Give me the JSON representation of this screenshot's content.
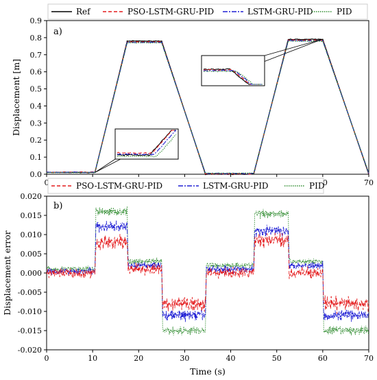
{
  "chart_data": [
    {
      "type": "line",
      "panel_tag": "a)",
      "xlabel": "",
      "ylabel": "Displacement [m]",
      "xlim": [
        0,
        70
      ],
      "ylim": [
        0,
        0.9
      ],
      "xticks": [
        0,
        10,
        20,
        30,
        40,
        50,
        60,
        70
      ],
      "yticks": [
        "0.0",
        "0.1",
        "0.2",
        "0.3",
        "0.4",
        "0.5",
        "0.6",
        "0.7",
        "0.8",
        "0.9"
      ],
      "legend_placement": "top (outside plot)",
      "grid": false,
      "x": [
        0,
        10.5,
        17.5,
        25,
        34.5,
        45,
        52.5,
        60,
        70
      ],
      "series": [
        {
          "name": "Ref",
          "color": "#000000",
          "style": "solid",
          "values": [
            0.01,
            0.01,
            0.78,
            0.78,
            0.0,
            0.0,
            0.79,
            0.79,
            0.0
          ]
        },
        {
          "name": "PSO-LSTM-GRU-PID",
          "color": "#e41a1c",
          "style": "dashed",
          "values": [
            0.012,
            0.012,
            0.775,
            0.775,
            0.003,
            0.003,
            0.785,
            0.785,
            0.003
          ]
        },
        {
          "name": "LSTM-GRU-PID",
          "color": "#1f1fd4",
          "style": "dashdot",
          "values": [
            0.011,
            0.011,
            0.772,
            0.772,
            0.005,
            0.005,
            0.782,
            0.782,
            0.005
          ]
        },
        {
          "name": "PID",
          "color": "#2e8b2e",
          "style": "dotted",
          "values": [
            0.01,
            0.01,
            0.77,
            0.77,
            0.006,
            0.006,
            0.78,
            0.78,
            0.006
          ]
        }
      ],
      "annotations": [
        "zoom inset near x≈10.5, y≈0.01",
        "zoom inset near x≈60, y≈0.79"
      ]
    },
    {
      "type": "line",
      "panel_tag": "b)",
      "xlabel": "Time (s)",
      "ylabel": "Displacement error",
      "xlim": [
        0,
        70
      ],
      "ylim": [
        -0.02,
        0.02
      ],
      "xticks": [
        0,
        10,
        20,
        30,
        40,
        50,
        60,
        70
      ],
      "yticks": [
        "-0.020",
        "-0.015",
        "-0.010",
        "-0.005",
        "0.000",
        "0.005",
        "0.010",
        "0.015",
        "0.020"
      ],
      "legend_placement": "top (outside plot)",
      "grid": false,
      "segments_x": [
        [
          0,
          10.5
        ],
        [
          10.5,
          17.5
        ],
        [
          17.5,
          25
        ],
        [
          25,
          34.5
        ],
        [
          34.5,
          45
        ],
        [
          45,
          52.5
        ],
        [
          52.5,
          60
        ],
        [
          60,
          70
        ]
      ],
      "series": [
        {
          "name": "PSO-LSTM-GRU-PID",
          "color": "#e41a1c",
          "style": "dashed",
          "segment_means": [
            0.0,
            0.008,
            0.001,
            -0.008,
            0.0,
            0.0085,
            0.0,
            -0.008
          ]
        },
        {
          "name": "LSTM-GRU-PID",
          "color": "#1f1fd4",
          "style": "dashdot",
          "segment_means": [
            0.0005,
            0.012,
            0.002,
            -0.011,
            0.001,
            0.011,
            0.002,
            -0.011
          ]
        },
        {
          "name": "PID",
          "color": "#2e8b2e",
          "style": "dotted",
          "segment_means": [
            0.001,
            0.016,
            0.003,
            -0.015,
            0.002,
            0.0155,
            0.003,
            -0.015
          ]
        }
      ]
    }
  ]
}
